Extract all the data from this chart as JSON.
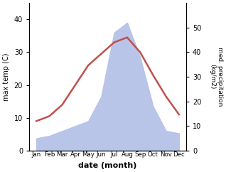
{
  "months": [
    "Jan",
    "Feb",
    "Mar",
    "Apr",
    "May",
    "Jun",
    "Jul",
    "Aug",
    "Sep",
    "Oct",
    "Nov",
    "Dec"
  ],
  "temperature": [
    9.0,
    10.5,
    14.0,
    20.0,
    26.0,
    29.5,
    33.0,
    34.5,
    30.0,
    23.0,
    16.5,
    11.0
  ],
  "precipitation": [
    5.0,
    6.0,
    8.0,
    10.0,
    12.0,
    22.0,
    48.0,
    52.0,
    38.0,
    18.0,
    8.0,
    7.0
  ],
  "temp_color": "#c0504d",
  "precip_fill_color": "#b8c4e8",
  "ylabel_left": "max temp (C)",
  "ylabel_right": "med. precipitation\n(kg/m2)",
  "xlabel": "date (month)",
  "ylim_left": [
    0,
    45
  ],
  "ylim_right": [
    0,
    60
  ],
  "yticks_left": [
    0,
    10,
    20,
    30,
    40
  ],
  "yticks_right": [
    0,
    10,
    20,
    30,
    40,
    50
  ],
  "bg_color": "#ffffff"
}
